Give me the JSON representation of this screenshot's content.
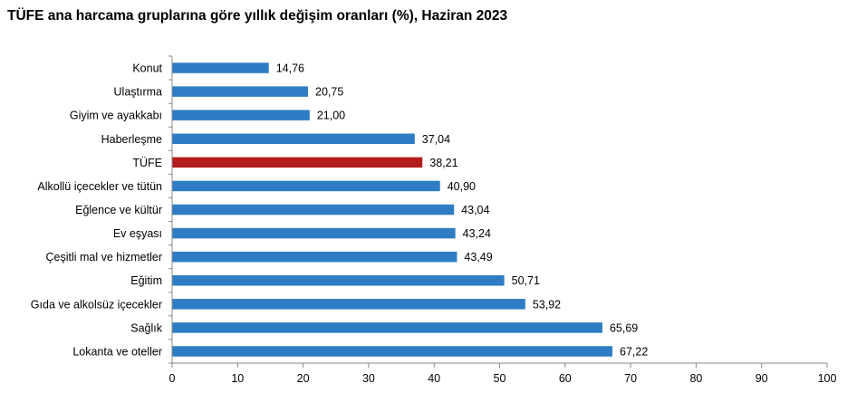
{
  "title": "TÜFE ana harcama gruplarına göre yıllık değişim oranları (%), Haziran 2023",
  "colors": {
    "bar": "#2e7dc4",
    "highlight": "#b21e1e",
    "axis": "#888888"
  },
  "chart_data": {
    "type": "bar",
    "orientation": "horizontal",
    "categories": [
      "Konut",
      "Ulaştırma",
      "Giyim ve ayakkabı",
      "Haberleşme",
      "TÜFE",
      "Alkollü içecekler ve tütün",
      "Eğlence ve kültür",
      "Ev eşyası",
      "Çeşitli mal ve hizmetler",
      "Eğitim",
      "Gıda ve alkolsüz içecekler",
      "Sağlık",
      "Lokanta ve oteller"
    ],
    "values": [
      14.76,
      20.75,
      21.0,
      37.04,
      38.21,
      40.9,
      43.04,
      43.24,
      43.49,
      50.71,
      53.92,
      65.69,
      67.22
    ],
    "value_labels": [
      "14,76",
      "20,75",
      "21,00",
      "37,04",
      "38,21",
      "40,90",
      "43,04",
      "43,24",
      "43,49",
      "50,71",
      "53,92",
      "65,69",
      "67,22"
    ],
    "highlight_category": "TÜFE",
    "xlim": [
      0,
      100
    ],
    "xticks": [
      "0",
      "10",
      "20",
      "30",
      "40",
      "50",
      "60",
      "70",
      "80",
      "90",
      "100"
    ],
    "grid": false,
    "legend": "none"
  }
}
